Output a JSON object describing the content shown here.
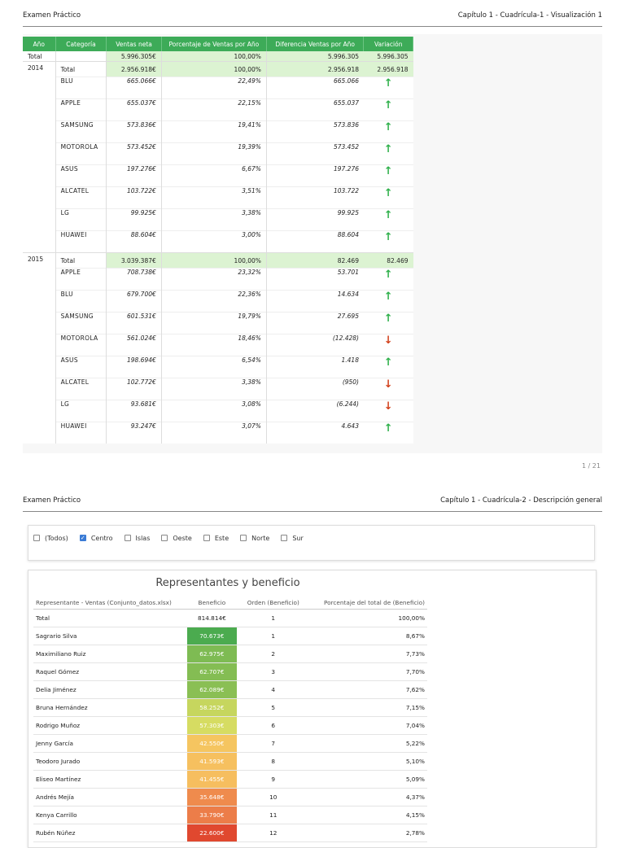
{
  "page1": {
    "header_left": "Examen Práctico",
    "header_right": "Capítulo 1 - Cuadrícula-1 - Visualización 1",
    "page_number": "1 / 21",
    "columns": [
      "Año",
      "Categoría",
      "Ventas neta",
      "Porcentaje de Ventas por Año",
      "Diferencia Ventas por Año",
      "Variación"
    ],
    "grand_total": {
      "year": "Total",
      "ventas": "5.996.305€",
      "pct": "100,00%",
      "diff": "5.996.305",
      "var": "5.996.305"
    },
    "year_2014": {
      "year": "2014",
      "total": {
        "cat": "Total",
        "ventas": "2.956.918€",
        "pct": "100,00%",
        "diff": "2.956.918",
        "var": "2.956.918"
      },
      "items": [
        {
          "cat": "BLU",
          "ventas": "665.066€",
          "pct": "22,49%",
          "diff": "665.066",
          "dir": "up"
        },
        {
          "cat": "APPLE",
          "ventas": "655.037€",
          "pct": "22,15%",
          "diff": "655.037",
          "dir": "up"
        },
        {
          "cat": "SAMSUNG",
          "ventas": "573.836€",
          "pct": "19,41%",
          "diff": "573.836",
          "dir": "up"
        },
        {
          "cat": "MOTOROLA",
          "ventas": "573.452€",
          "pct": "19,39%",
          "diff": "573.452",
          "dir": "up"
        },
        {
          "cat": "ASUS",
          "ventas": "197.276€",
          "pct": "6,67%",
          "diff": "197.276",
          "dir": "up"
        },
        {
          "cat": "ALCATEL",
          "ventas": "103.722€",
          "pct": "3,51%",
          "diff": "103.722",
          "dir": "up"
        },
        {
          "cat": "LG",
          "ventas": "99.925€",
          "pct": "3,38%",
          "diff": "99.925",
          "dir": "up"
        },
        {
          "cat": "HUAWEI",
          "ventas": "88.604€",
          "pct": "3,00%",
          "diff": "88.604",
          "dir": "up"
        }
      ]
    },
    "year_2015": {
      "year": "2015",
      "total": {
        "cat": "Total",
        "ventas": "3.039.387€",
        "pct": "100,00%",
        "diff": "82.469",
        "var": "82.469"
      },
      "items": [
        {
          "cat": "APPLE",
          "ventas": "708.738€",
          "pct": "23,32%",
          "diff": "53.701",
          "dir": "up"
        },
        {
          "cat": "BLU",
          "ventas": "679.700€",
          "pct": "22,36%",
          "diff": "14.634",
          "dir": "up"
        },
        {
          "cat": "SAMSUNG",
          "ventas": "601.531€",
          "pct": "19,79%",
          "diff": "27.695",
          "dir": "up"
        },
        {
          "cat": "MOTOROLA",
          "ventas": "561.024€",
          "pct": "18,46%",
          "diff": "(12.428)",
          "dir": "down"
        },
        {
          "cat": "ASUS",
          "ventas": "198.694€",
          "pct": "6,54%",
          "diff": "1.418",
          "dir": "up"
        },
        {
          "cat": "ALCATEL",
          "ventas": "102.772€",
          "pct": "3,38%",
          "diff": "(950)",
          "dir": "down"
        },
        {
          "cat": "LG",
          "ventas": "93.681€",
          "pct": "3,08%",
          "diff": "(6.244)",
          "dir": "down"
        },
        {
          "cat": "HUAWEI",
          "ventas": "93.247€",
          "pct": "3,07%",
          "diff": "4.643",
          "dir": "up"
        }
      ]
    }
  },
  "page2": {
    "header_left": "Examen Práctico",
    "header_right": "Capítulo 1 - Cuadrícula-2 - Descripción general",
    "filters": [
      {
        "label": "(Todos)",
        "checked": false
      },
      {
        "label": "Centro",
        "checked": true
      },
      {
        "label": "Islas",
        "checked": false
      },
      {
        "label": "Oeste",
        "checked": false
      },
      {
        "label": "Este",
        "checked": false
      },
      {
        "label": "Norte",
        "checked": false
      },
      {
        "label": "Sur",
        "checked": false
      }
    ],
    "panel_title": "Representantes y beneficio",
    "columns": [
      "Representante - Ventas (Conjunto_datos.xlsx)",
      "Beneficio",
      "Orden (Beneficio)",
      "Porcentaje del total de (Beneficio)"
    ],
    "total": {
      "name": "Total",
      "beneficio": "814.814€",
      "orden": "1",
      "pct": "100,00%"
    },
    "rows": [
      {
        "name": "Sagrario Silva",
        "beneficio": "70.673€",
        "orden": "1",
        "pct": "8,67%",
        "color": "#4bab4f"
      },
      {
        "name": "Maximiliano Ruiz",
        "beneficio": "62.975€",
        "orden": "2",
        "pct": "7,73%",
        "color": "#7ebb53"
      },
      {
        "name": "Raquel Gómez",
        "beneficio": "62.707€",
        "orden": "3",
        "pct": "7,70%",
        "color": "#84bd53"
      },
      {
        "name": "Delia Jiménez",
        "beneficio": "62.089€",
        "orden": "4",
        "pct": "7,62%",
        "color": "#8abf54"
      },
      {
        "name": "Bruna Hernández",
        "beneficio": "58.252€",
        "orden": "5",
        "pct": "7,15%",
        "color": "#c6d65e"
      },
      {
        "name": "Rodrigo Muñoz",
        "beneficio": "57.303€",
        "orden": "6",
        "pct": "7,04%",
        "color": "#d6dc62"
      },
      {
        "name": "Jenny García",
        "beneficio": "42.550€",
        "orden": "7",
        "pct": "5,22%",
        "color": "#f5c560"
      },
      {
        "name": "Teodoro Jurado",
        "beneficio": "41.593€",
        "orden": "8",
        "pct": "5,10%",
        "color": "#f6c05f"
      },
      {
        "name": "Eliseo Martínez",
        "beneficio": "41.455€",
        "orden": "9",
        "pct": "5,09%",
        "color": "#f6be5f"
      },
      {
        "name": "Andrés Mejía",
        "beneficio": "35.648€",
        "orden": "10",
        "pct": "4,37%",
        "color": "#ef8b4d"
      },
      {
        "name": "Kenya Carrillo",
        "beneficio": "33.790€",
        "orden": "11",
        "pct": "4,15%",
        "color": "#ec7d49"
      },
      {
        "name": "Rubén Núñez",
        "beneficio": "22.600€",
        "orden": "12",
        "pct": "2,78%",
        "color": "#e0482f"
      }
    ]
  }
}
